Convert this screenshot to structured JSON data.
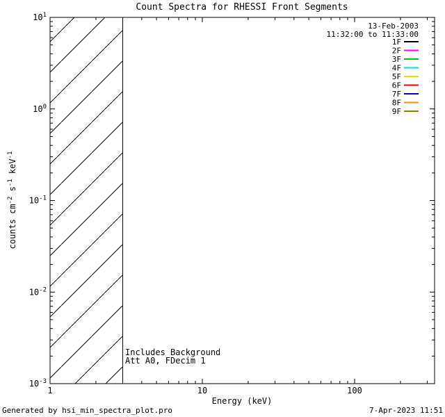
{
  "footer": {
    "left": "Generated by hsi_min_spectra_plot.pro",
    "right": "7-Apr-2023 11:51"
  },
  "chart_data": {
    "type": "line",
    "title": "Count Spectra for RHESSI Front Segments",
    "xlabel": "Energy (keV)",
    "ylabel": "counts cm^-2 s^-1 keV^-1",
    "ylabel_parts": [
      {
        "text": "counts cm"
      },
      {
        "text": "-2",
        "sup": true
      },
      {
        "text": " s"
      },
      {
        "text": "-1",
        "sup": true
      },
      {
        "text": " keV"
      },
      {
        "text": "-1",
        "sup": true
      }
    ],
    "x_axis": {
      "scale": "log",
      "min": 1,
      "max": 335,
      "major_ticks": [
        1,
        10,
        100
      ],
      "minor_ticks": [
        2,
        3,
        4,
        5,
        6,
        7,
        8,
        9,
        20,
        30,
        40,
        50,
        60,
        70,
        80,
        90,
        200,
        300
      ],
      "label": "Energy (keV)"
    },
    "y_axis": {
      "scale": "log",
      "min": 0.001,
      "max": 10,
      "major_tick_exponents": [
        1,
        0,
        -1,
        -2,
        -3
      ],
      "minor_multiples": [
        2,
        3,
        4,
        5,
        6,
        7,
        8,
        9
      ],
      "minor_decades": [
        -3,
        -2,
        -1,
        0
      ]
    },
    "annotations": {
      "date": "13-Feb-2003",
      "time_range": "11:32:00 to 11:33:00",
      "notes": [
        "Includes Background",
        "Att A0, FDecim 1"
      ]
    },
    "legend": [
      {
        "label": "1F",
        "color": "#000000"
      },
      {
        "label": "2F",
        "color": "#ff00ff"
      },
      {
        "label": "3F",
        "color": "#00c000"
      },
      {
        "label": "4F",
        "color": "#00dcdc"
      },
      {
        "label": "5F",
        "color": "#e2e200"
      },
      {
        "label": "6F",
        "color": "#ff0000"
      },
      {
        "label": "7F",
        "color": "#0000c8"
      },
      {
        "label": "8F",
        "color": "#ff8c00"
      },
      {
        "label": "9F",
        "color": "#8a8a00"
      }
    ],
    "background_region": {
      "x_start": 1,
      "x_end": 3,
      "style": "diagonal-hatch"
    },
    "series": []
  }
}
